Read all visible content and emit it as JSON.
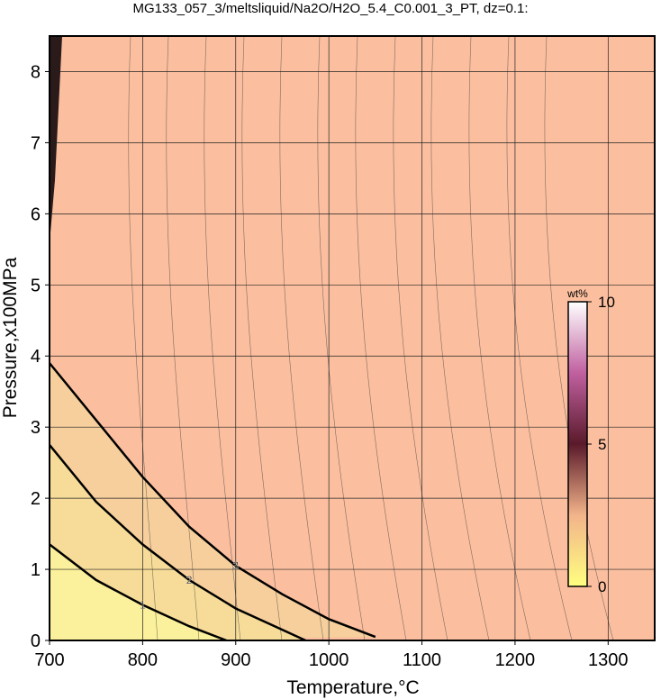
{
  "chart_data": {
    "type": "contour",
    "title": "MG133_057_3/meltsliquid/Na2O/H2O_5.4_C0.001_3_PT, dz=0.1:",
    "x_label": "Temperature,°C",
    "y_label": "Pressure,x100MPa",
    "xlim": [
      700,
      1350
    ],
    "ylim": [
      0,
      8.5
    ],
    "xticks": [
      700,
      800,
      900,
      1000,
      1100,
      1200,
      1300
    ],
    "yticks": [
      0,
      1,
      2,
      3,
      4,
      5,
      6,
      7,
      8
    ],
    "grid": true,
    "background_color": "#fbbf9f",
    "contours": [
      {
        "level": 3,
        "fill": "#f6cf9c",
        "x": [
          700,
          750,
          800,
          850,
          900,
          950,
          1000,
          1050
        ],
        "y": [
          3.9,
          3.1,
          2.3,
          1.6,
          1.05,
          0.65,
          0.3,
          0.05
        ]
      },
      {
        "level": 2,
        "fill": "#f6dc98",
        "x": [
          700,
          750,
          800,
          850,
          900,
          950,
          975
        ],
        "y": [
          2.75,
          1.95,
          1.35,
          0.85,
          0.45,
          0.15,
          0
        ]
      },
      {
        "level": 1,
        "fill": "#fbf09b",
        "x": [
          700,
          750,
          800,
          850,
          890
        ],
        "y": [
          1.35,
          0.85,
          0.5,
          0.2,
          0
        ]
      }
    ],
    "colorbar": {
      "label": "wt%",
      "clim": [
        0,
        10
      ],
      "ticks": [
        0,
        5,
        10
      ],
      "colors": [
        "#ffff80",
        "#f2b48a",
        "#5a1a2a",
        "#c060a0",
        "#ffffff"
      ]
    }
  }
}
